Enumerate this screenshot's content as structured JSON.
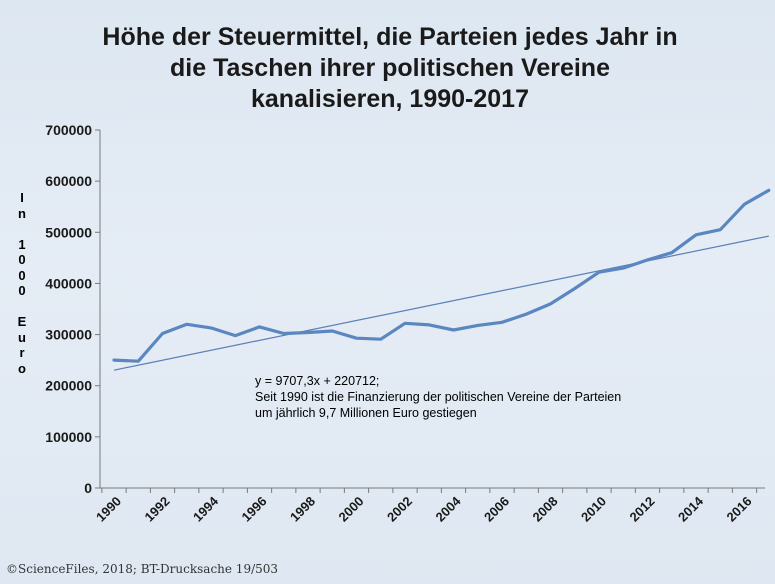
{
  "chart_data": {
    "type": "line",
    "title": [
      "Höhe der Steuermittel, die Parteien jedes Jahr in",
      "die Taschen ihrer politischen Vereine",
      "kanalisieren, 1990-2017"
    ],
    "ylabel": "In 1000 Euro",
    "y_ticks": [
      "0",
      "100000",
      "200000",
      "300000",
      "400000",
      "500000",
      "600000",
      "700000"
    ],
    "x_ticks": [
      "1990",
      "1992",
      "1994",
      "1996",
      "1998",
      "2000",
      "2002",
      "2004",
      "2006",
      "2008",
      "2010",
      "2012",
      "2014",
      "2016"
    ],
    "ylim": [
      0,
      700000
    ],
    "grid": false,
    "x": [
      1990,
      1991,
      1992,
      1993,
      1994,
      1995,
      1996,
      1997,
      1998,
      1999,
      2000,
      2001,
      2002,
      2003,
      2004,
      2005,
      2006,
      2007,
      2008,
      2009,
      2010,
      2011,
      2012,
      2013,
      2014,
      2015,
      2016,
      2017
    ],
    "series": [
      {
        "values": [
          250000,
          248000,
          302000,
          320000,
          313000,
          298000,
          315000,
          302000,
          304000,
          307000,
          293000,
          291000,
          322000,
          319000,
          309000,
          318000,
          324000,
          340000,
          360000,
          390000,
          422000,
          430000,
          446000,
          460000,
          495000,
          505000,
          555000,
          582000
        ]
      }
    ],
    "trendline": {
      "slope": 9707.3,
      "intercept": 220712
    },
    "annotation": [
      "y = 9707,3x + 220712;",
      "Seit 1990 ist die Finanzierung der politischen Vereine der Parteien",
      "um jährlich 9,7 Millionen Euro gestiegen"
    ],
    "colors": {
      "series": "#5b87c0",
      "trendline": "#5b7fb8",
      "axis": "#7a7a7a"
    }
  },
  "source": "©ScienceFiles, 2018; BT-Drucksache 19/503"
}
